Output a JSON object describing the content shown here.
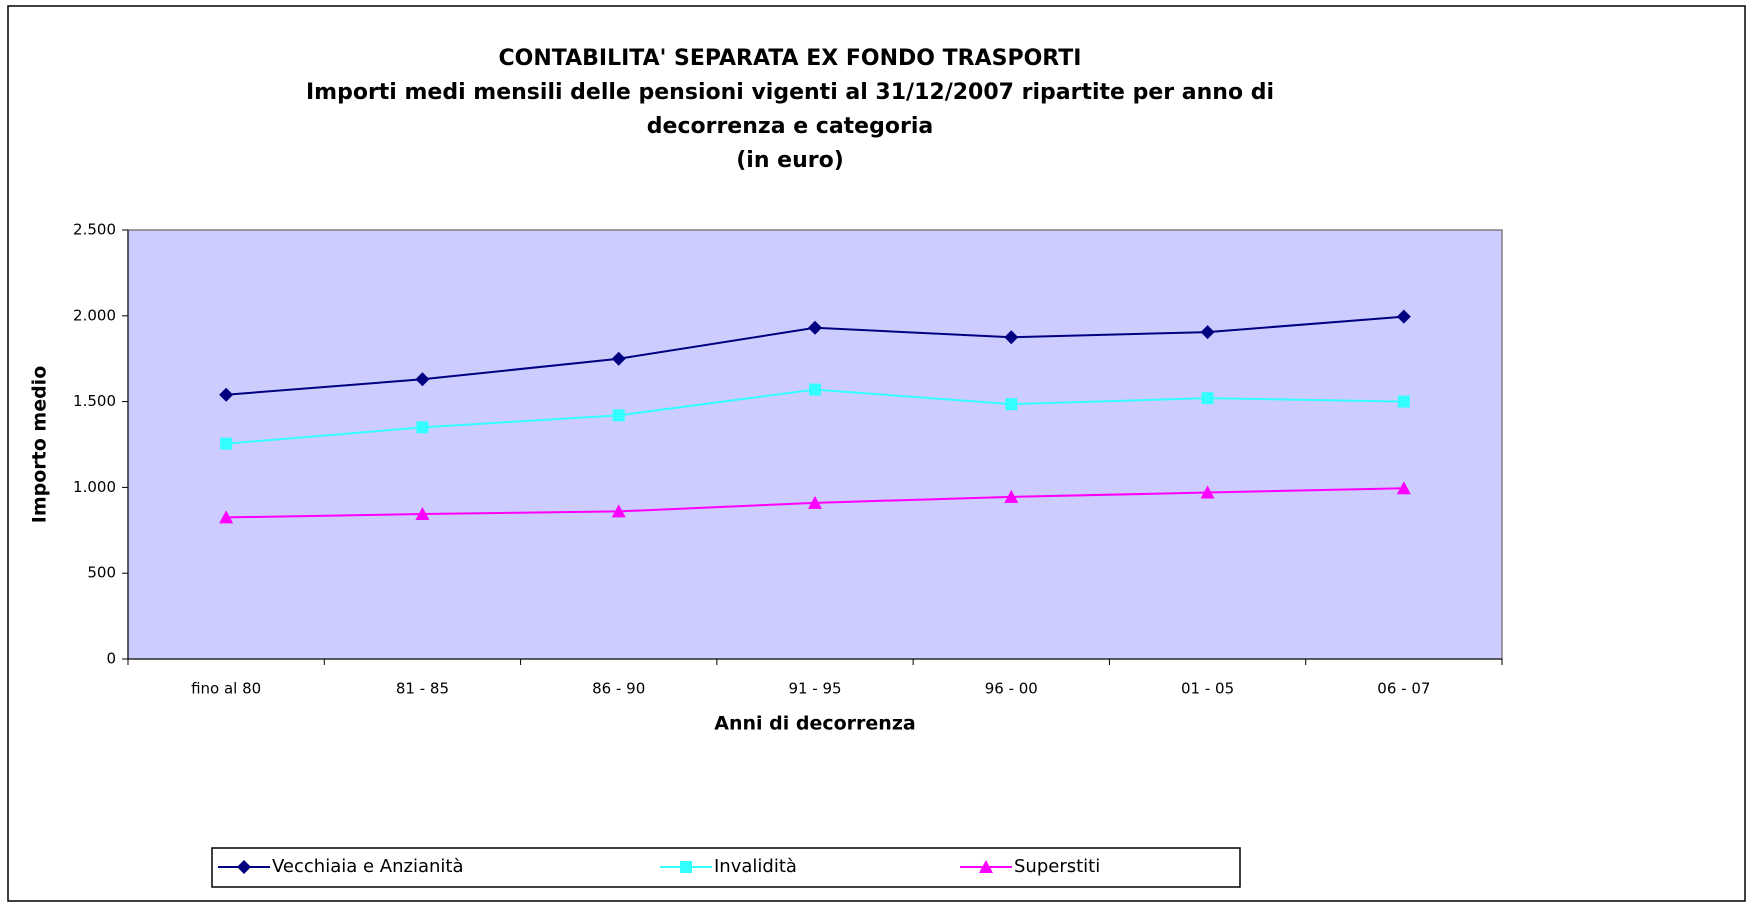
{
  "chart_data": {
    "type": "line",
    "title": [
      "CONTABILITA' SEPARATA EX FONDO TRASPORTI",
      "Importi medi mensili delle pensioni vigenti al 31/12/2007 ripartite per anno di",
      "decorrenza e categoria",
      "(in euro)"
    ],
    "x_label": "Anni di decorrenza",
    "y_label": "Importo medio",
    "categories": [
      "fino al 80",
      "81 - 85",
      "86 - 90",
      "91 - 95",
      "96 - 00",
      "01 - 05",
      "06 - 07"
    ],
    "series": [
      {
        "name": "Vecchiaia e Anzianità",
        "color": "#000080",
        "marker": "diamond",
        "values": [
          1540,
          1630,
          1750,
          1930,
          1875,
          1905,
          1995
        ]
      },
      {
        "name": "Invalidità",
        "color": "#33ffff",
        "marker": "square",
        "values": [
          1255,
          1350,
          1420,
          1570,
          1485,
          1520,
          1500
        ]
      },
      {
        "name": "Superstiti",
        "color": "#ff00ff",
        "marker": "triangle",
        "values": [
          825,
          845,
          860,
          910,
          945,
          970,
          995
        ]
      }
    ],
    "ylim": [
      0,
      2500
    ],
    "yticks": [
      0,
      500,
      {
        "value": 1000,
        "label": "1.000"
      },
      {
        "value": 1500,
        "label": "1.500"
      },
      {
        "value": 2000,
        "label": "2.000"
      },
      {
        "value": 2500,
        "label": "2.500"
      }
    ],
    "plot_background": "#ccccff",
    "legend": "bottom"
  }
}
